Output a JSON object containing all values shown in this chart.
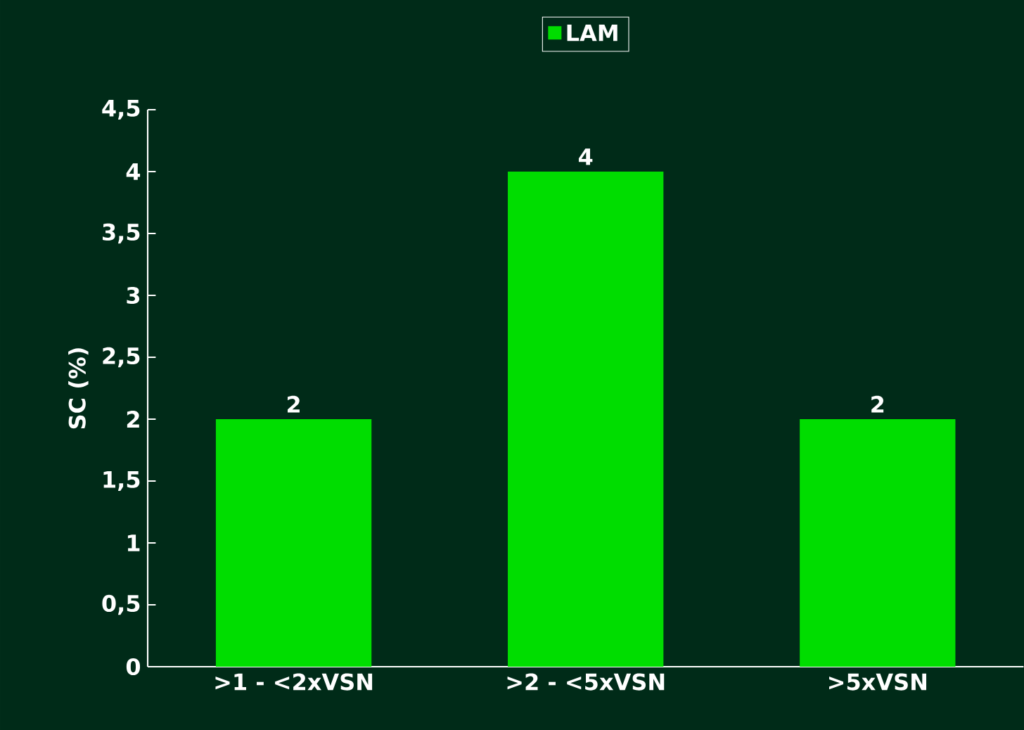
{
  "chart_data": {
    "type": "bar",
    "ylabel": "SC (%)",
    "categories": [
      ">1 - <2xVSN",
      ">2 - <5xVSN",
      ">5xVSN"
    ],
    "series": [
      {
        "name": "LAM",
        "color": "#00dd00",
        "values": [
          2,
          4,
          2
        ]
      }
    ],
    "ylim": [
      0,
      4.5
    ],
    "yticks": [
      0,
      {
        "value": 0.5,
        "label": "0,5"
      },
      1,
      {
        "value": 1.5,
        "label": "1,5"
      },
      2,
      {
        "value": 2.5,
        "label": "2,5"
      },
      3,
      {
        "value": 3.5,
        "label": "3,5"
      },
      4,
      {
        "value": 4.5,
        "label": "4,5"
      }
    ],
    "data_labels": true,
    "legend": "top",
    "grid": false
  }
}
